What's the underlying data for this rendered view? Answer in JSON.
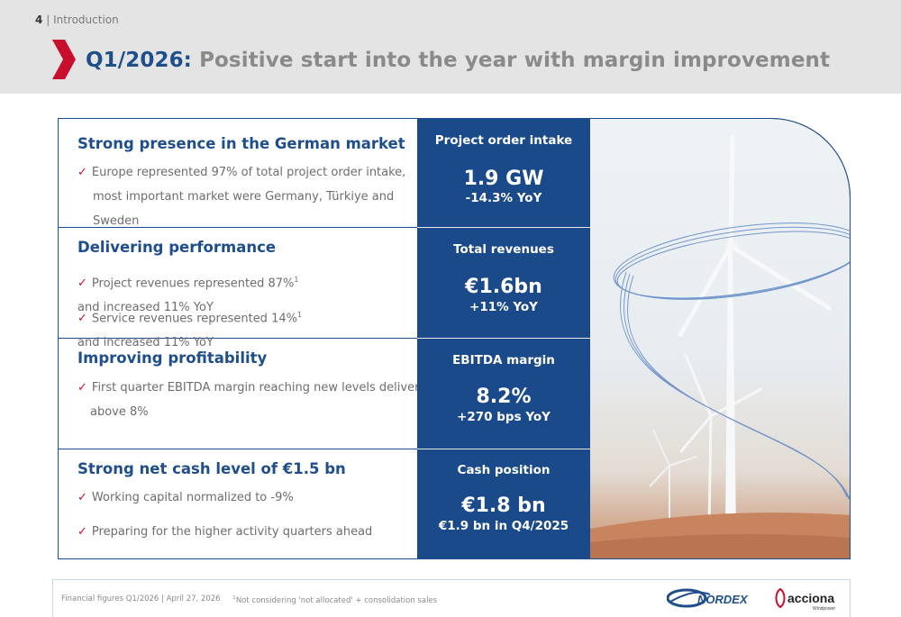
{
  "header": {
    "page_number": "4",
    "separator": "|",
    "section": "Introduction",
    "title_prefix": "Q1/2026:",
    "title_rest": "Positive start into the year with margin improvement"
  },
  "rows": [
    {
      "heading": "Strong presence in the German market",
      "bullets": [
        {
          "lines": [
            "Europe represented 97% of total project order intake,",
            "most important market were Germany, Türkiye and",
            "Sweden"
          ]
        }
      ]
    },
    {
      "heading": "Delivering performance",
      "bullets": [
        {
          "pre": "Project revenues represented 87%",
          "sup": "1",
          "post": " and increased 11% YoY"
        },
        {
          "pre": "Service revenues represented 14%",
          "sup": "1",
          "post": " and increased 11% YoY"
        }
      ]
    },
    {
      "heading": "Improving profitability",
      "bullets": [
        {
          "lines": [
            "First quarter EBITDA margin reaching new levels delivering",
            "above 8%"
          ]
        }
      ]
    },
    {
      "heading": "Strong net cash level of €1.5 bn",
      "bullets": [
        {
          "text": "Working capital normalized to -9%"
        },
        {
          "text": "Preparing for the higher activity quarters ahead"
        }
      ]
    }
  ],
  "kpis": [
    {
      "label": "Project order intake",
      "value": "1.9 GW",
      "sub": "-14.3%  YoY"
    },
    {
      "label": "Total revenues",
      "value": "€1.6bn",
      "sub": "+11%  YoY"
    },
    {
      "label": "EBITDA margin",
      "value": "8.2%",
      "sub": "+270 bps YoY"
    },
    {
      "label": "Cash position",
      "value": "€1.8 bn",
      "sub": "€1.9 bn in Q4/2025"
    }
  ],
  "check_glyph": "✓",
  "footer": {
    "left": "Financial figures Q1/2026 | April 27, 2026",
    "note_sup": "1",
    "note": "Not considering 'not allocated' + consolidation sales",
    "logo1": "NORDEX",
    "logo2": "acciona",
    "logo2_sub": "Windpower"
  },
  "colors": {
    "brand_blue": "#1f4e8c",
    "kpi_blue": "#1a4a8a",
    "accent_red": "#c8102e"
  }
}
